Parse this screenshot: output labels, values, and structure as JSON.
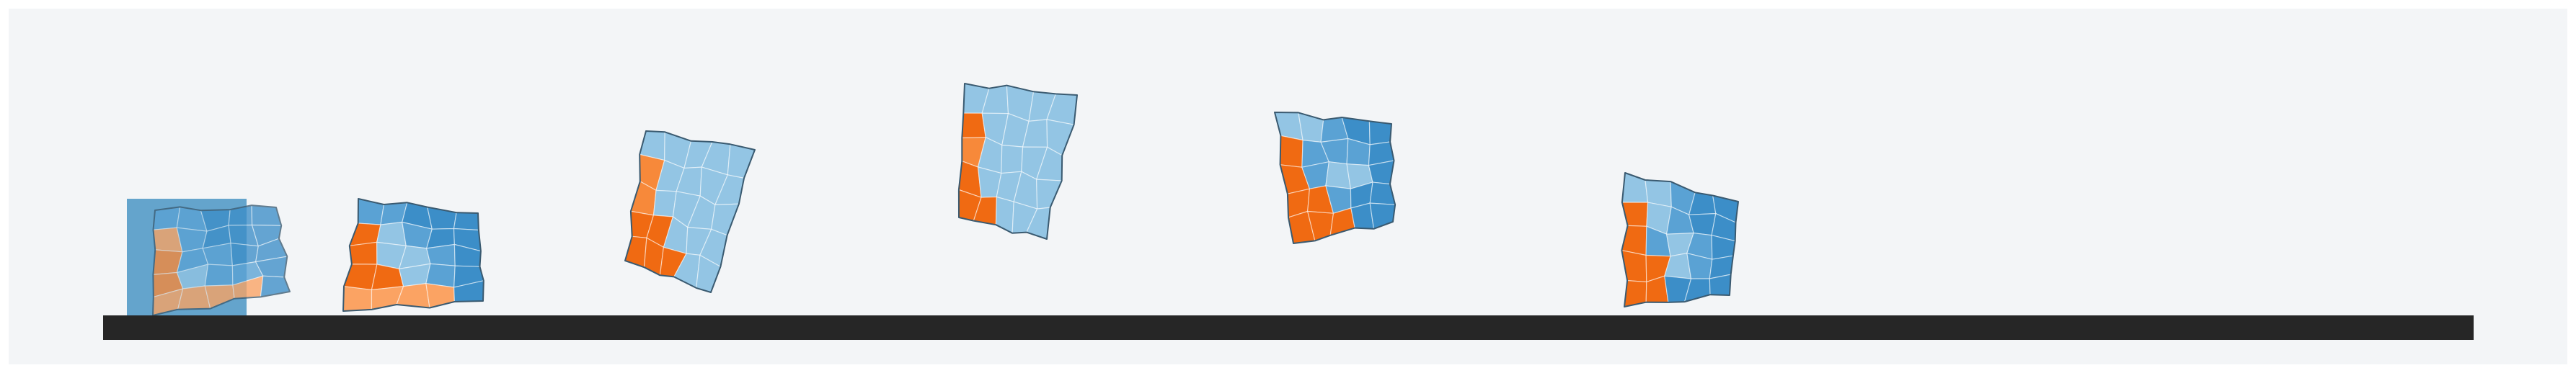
{
  "scene": {
    "background_color": "#f3f5f7",
    "canvas_color": "#ffffff",
    "ground_color": "#262626",
    "start_marker_color": "#4a95c4",
    "palette": {
      "blue_dark": "#3c8ec8",
      "blue_mid": "#5aa2d4",
      "blue_light": "#93c5e4",
      "blue_pale": "#a8d0ea",
      "orange_dark": "#f06a12",
      "orange_mid": "#f7893a",
      "orange_light": "#fba363"
    },
    "frames": [
      {
        "name": "frame-1-start",
        "shows_start_marker": true
      },
      {
        "name": "frame-2"
      },
      {
        "name": "frame-3"
      },
      {
        "name": "frame-4"
      },
      {
        "name": "frame-5"
      },
      {
        "name": "frame-6"
      }
    ]
  }
}
